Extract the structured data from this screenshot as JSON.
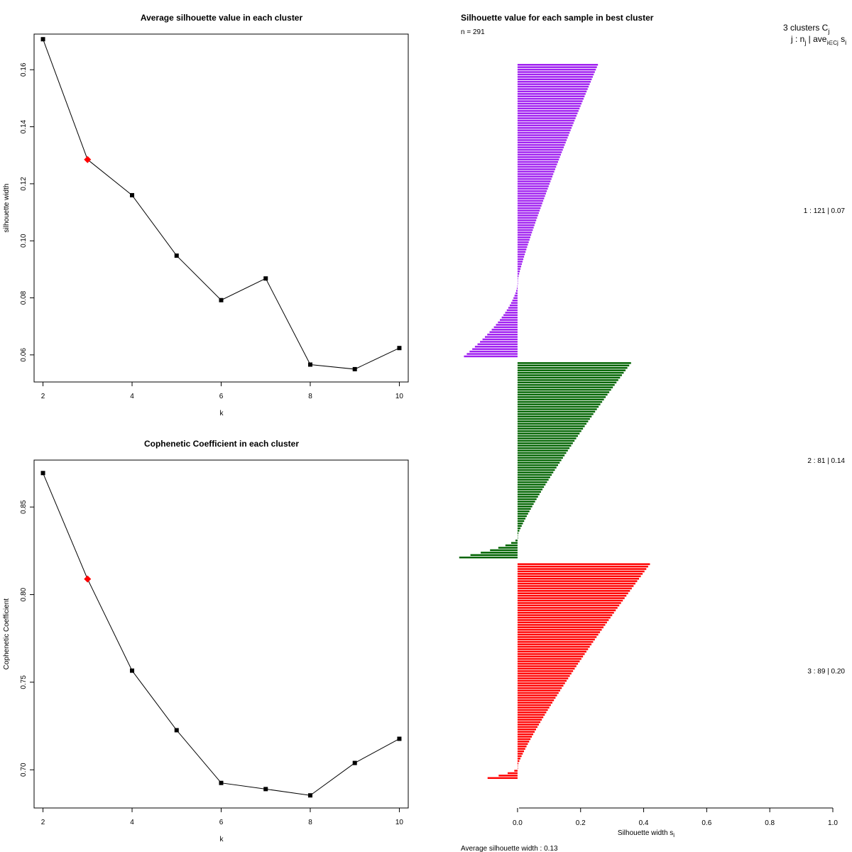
{
  "chart_data": [
    {
      "type": "line",
      "title": "Average silhouette value in each cluster",
      "xlabel": "k",
      "ylabel": "silhouette width",
      "x": [
        2,
        3,
        4,
        5,
        6,
        7,
        8,
        9,
        10
      ],
      "values": [
        0.1707,
        0.1285,
        0.116,
        0.0948,
        0.0792,
        0.0868,
        0.0566,
        0.055,
        0.0624
      ],
      "highlight_index": 1,
      "highlight_color": "#ff0000",
      "xlim": [
        1.8,
        10.2
      ],
      "ylim": [
        0.0505,
        0.1725
      ],
      "xticks": [
        2,
        4,
        6,
        8,
        10
      ],
      "yticks": [
        0.06,
        0.08,
        0.1,
        0.12,
        0.14,
        0.16
      ],
      "ytick_labels": [
        "0.06",
        "0.08",
        "0.10",
        "0.12",
        "0.14",
        "0.16"
      ]
    },
    {
      "type": "line",
      "title": "Cophenetic Coefficient in each cluster",
      "xlabel": "k",
      "ylabel": "Cophenetic Coefficient",
      "x": [
        2,
        3,
        4,
        5,
        6,
        7,
        8,
        9,
        10
      ],
      "values": [
        0.8694,
        0.8089,
        0.7566,
        0.7226,
        0.6925,
        0.689,
        0.6854,
        0.7039,
        0.7177
      ],
      "highlight_index": 1,
      "highlight_color": "#ff0000",
      "xlim": [
        1.8,
        10.2
      ],
      "ylim": [
        0.6782,
        0.8768
      ],
      "xticks": [
        2,
        4,
        6,
        8,
        10
      ],
      "yticks": [
        0.7,
        0.75,
        0.8,
        0.85
      ],
      "ytick_labels": [
        "0.70",
        "0.75",
        "0.80",
        "0.85"
      ]
    },
    {
      "type": "bar",
      "orientation": "horizontal",
      "title": "Silhouette value for each sample in best cluster",
      "n_label": "n = 291",
      "xlabel": "Silhouette width s",
      "xlabel_sub": "i",
      "xlim": [
        -0.18,
        1.0
      ],
      "xticks": [
        0.0,
        0.2,
        0.4,
        0.6,
        0.8,
        1.0
      ],
      "xtick_labels": [
        "0.0",
        "0.2",
        "0.4",
        "0.6",
        "0.8",
        "1.0"
      ],
      "header_line1": "3  clusters  C",
      "header_line1_sub": "j",
      "header_line2": "j :  n",
      "header_line2_sub": "j",
      "header_line2_rest": " | ave",
      "header_line2_sub2": "i∈Cj",
      "header_line2_tail": " s",
      "header_line2_sub3": "i",
      "footer": "Average silhouette width :  0.13",
      "clusters": [
        {
          "id": 1,
          "label": "1 :   121  |  0.07",
          "n": 121,
          "max": 0.255,
          "min": -0.17,
          "neg_count": 31,
          "color": "#a020f0"
        },
        {
          "id": 2,
          "label": "2 :   81  |  0.14",
          "n": 81,
          "max": 0.36,
          "min": -0.185,
          "neg_count": 9,
          "color": "#006400"
        },
        {
          "id": 3,
          "label": "3 :   89  |  0.20",
          "n": 89,
          "max": 0.42,
          "min": -0.095,
          "neg_count": 5,
          "color": "#ff0000"
        }
      ]
    }
  ]
}
